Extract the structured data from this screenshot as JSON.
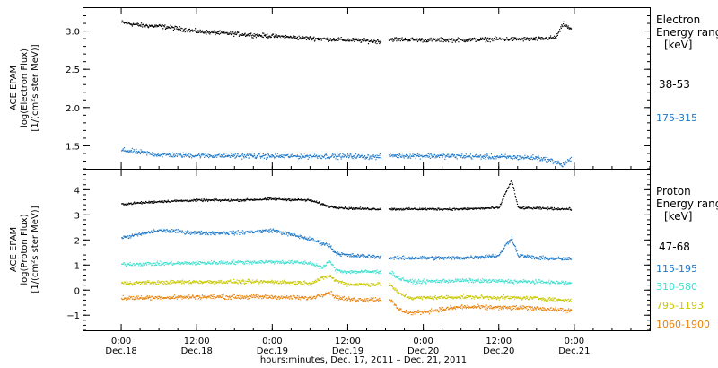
{
  "chart_data": [
    {
      "type": "scatter",
      "panel": "electron",
      "ylabel_lines": [
        "ACE EPAM",
        "log(Electron Flux)",
        "[1/(cm²s ster MeV)]"
      ],
      "ylim": [
        1.2,
        3.3
      ],
      "yticks": [
        1.5,
        2.0,
        2.5,
        3.0
      ],
      "ytick_labels": [
        "1.5",
        "2.0",
        "2.5",
        "3.0"
      ],
      "legend_title_lines": [
        "Electron",
        "Energy range",
        "[keV]"
      ],
      "series": [
        {
          "name": "38-53",
          "color": "#000000",
          "noise": 0.025,
          "points": [
            [
              0,
              3.12
            ],
            [
              3,
              3.08
            ],
            [
              6,
              3.07
            ],
            [
              9,
              3.04
            ],
            [
              12,
              3.0
            ],
            [
              18,
              2.97
            ],
            [
              24,
              2.94
            ],
            [
              30,
              2.91
            ],
            [
              36,
              2.89
            ],
            [
              41,
              2.87
            ],
            [
              42.6,
              2.9
            ],
            [
              48,
              2.89
            ],
            [
              54,
              2.89
            ],
            [
              60,
              2.9
            ],
            [
              66,
              2.9
            ],
            [
              69,
              2.92
            ],
            [
              70.2,
              3.1
            ],
            [
              71.5,
              3.02
            ]
          ]
        },
        {
          "name": "175-315",
          "color": "#1f78c8",
          "noise": 0.03,
          "points": [
            [
              0,
              1.45
            ],
            [
              3,
              1.42
            ],
            [
              6,
              1.39
            ],
            [
              12,
              1.38
            ],
            [
              24,
              1.37
            ],
            [
              36,
              1.37
            ],
            [
              41,
              1.36
            ],
            [
              42.6,
              1.38
            ],
            [
              54,
              1.37
            ],
            [
              66,
              1.35
            ],
            [
              69,
              1.3
            ],
            [
              70,
              1.25
            ],
            [
              71.5,
              1.33
            ]
          ]
        }
      ]
    },
    {
      "type": "scatter",
      "panel": "proton",
      "ylabel_lines": [
        "ACE EPAM",
        "log(Proton Flux)",
        "[1/(cm²s ster MeV)]"
      ],
      "ylim": [
        -1.6,
        4.8
      ],
      "yticks": [
        -1,
        0,
        1,
        2,
        3,
        4
      ],
      "ytick_labels": [
        "−1",
        "0",
        "1",
        "2",
        "3",
        "4"
      ],
      "legend_title_lines": [
        "Proton",
        "Energy range",
        "[keV]"
      ],
      "series": [
        {
          "name": "47-68",
          "color": "#000000",
          "noise": 0.04,
          "points": [
            [
              0,
              3.45
            ],
            [
              6,
              3.55
            ],
            [
              12,
              3.6
            ],
            [
              18,
              3.6
            ],
            [
              24,
              3.65
            ],
            [
              30,
              3.6
            ],
            [
              33,
              3.35
            ],
            [
              36,
              3.28
            ],
            [
              41,
              3.25
            ],
            [
              42.6,
              3.25
            ],
            [
              54,
              3.25
            ],
            [
              60,
              3.3
            ],
            [
              61,
              3.9
            ],
            [
              62,
              4.4
            ],
            [
              63,
              3.3
            ],
            [
              66,
              3.28
            ],
            [
              71.5,
              3.25
            ]
          ]
        },
        {
          "name": "115-195",
          "color": "#1f78c8",
          "noise": 0.07,
          "points": [
            [
              0,
              2.1
            ],
            [
              6,
              2.4
            ],
            [
              12,
              2.3
            ],
            [
              18,
              2.3
            ],
            [
              24,
              2.4
            ],
            [
              30,
              2.05
            ],
            [
              33,
              1.8
            ],
            [
              34,
              1.5
            ],
            [
              36,
              1.4
            ],
            [
              41,
              1.35
            ],
            [
              42.6,
              1.3
            ],
            [
              54,
              1.3
            ],
            [
              60,
              1.4
            ],
            [
              61,
              1.8
            ],
            [
              62,
              2.1
            ],
            [
              63,
              1.4
            ],
            [
              66,
              1.3
            ],
            [
              71.5,
              1.25
            ]
          ]
        },
        {
          "name": "310-580",
          "color": "#40e0d0",
          "noise": 0.07,
          "points": [
            [
              0,
              1.05
            ],
            [
              12,
              1.1
            ],
            [
              24,
              1.15
            ],
            [
              30,
              1.1
            ],
            [
              32,
              0.9
            ],
            [
              33,
              1.2
            ],
            [
              34,
              0.8
            ],
            [
              36,
              0.75
            ],
            [
              41,
              0.75
            ],
            [
              42.6,
              0.75
            ],
            [
              44,
              0.5
            ],
            [
              46,
              0.35
            ],
            [
              54,
              0.4
            ],
            [
              66,
              0.35
            ],
            [
              71.5,
              0.3
            ]
          ]
        },
        {
          "name": "795-1193",
          "color": "#c8c800",
          "noise": 0.07,
          "points": [
            [
              0,
              0.3
            ],
            [
              12,
              0.35
            ],
            [
              24,
              0.35
            ],
            [
              30,
              0.3
            ],
            [
              33,
              0.6
            ],
            [
              34,
              0.4
            ],
            [
              36,
              0.25
            ],
            [
              41,
              0.25
            ],
            [
              42.6,
              0.25
            ],
            [
              44,
              -0.1
            ],
            [
              46,
              -0.3
            ],
            [
              54,
              -0.25
            ],
            [
              66,
              -0.3
            ],
            [
              71.5,
              -0.4
            ]
          ]
        },
        {
          "name": "1060-1900",
          "color": "#e8820c",
          "noise": 0.08,
          "points": [
            [
              0,
              -0.3
            ],
            [
              12,
              -0.25
            ],
            [
              24,
              -0.25
            ],
            [
              30,
              -0.3
            ],
            [
              33,
              -0.05
            ],
            [
              34,
              -0.25
            ],
            [
              36,
              -0.35
            ],
            [
              41,
              -0.35
            ],
            [
              42.6,
              -0.35
            ],
            [
              44,
              -0.75
            ],
            [
              46,
              -0.9
            ],
            [
              54,
              -0.65
            ],
            [
              66,
              -0.7
            ],
            [
              71.5,
              -0.8
            ]
          ]
        }
      ]
    }
  ],
  "x_axis": {
    "label": "hours:minutes, Dec. 17, 2011 – Dec. 21, 2011",
    "xlim": [
      -6,
      84
    ],
    "gap": [
      41.2,
      42.4
    ],
    "ticks": [
      {
        "x": 0,
        "time": "0:00",
        "date": "Dec.18"
      },
      {
        "x": 12,
        "time": "12:00",
        "date": "Dec.18"
      },
      {
        "x": 24,
        "time": "0:00",
        "date": "Dec.19"
      },
      {
        "x": 36,
        "time": "12:00",
        "date": "Dec.19"
      },
      {
        "x": 48,
        "time": "0:00",
        "date": "Dec.20"
      },
      {
        "x": 60,
        "time": "12:00",
        "date": "Dec.20"
      },
      {
        "x": 72,
        "time": "0:00",
        "date": "Dec.21"
      }
    ]
  }
}
